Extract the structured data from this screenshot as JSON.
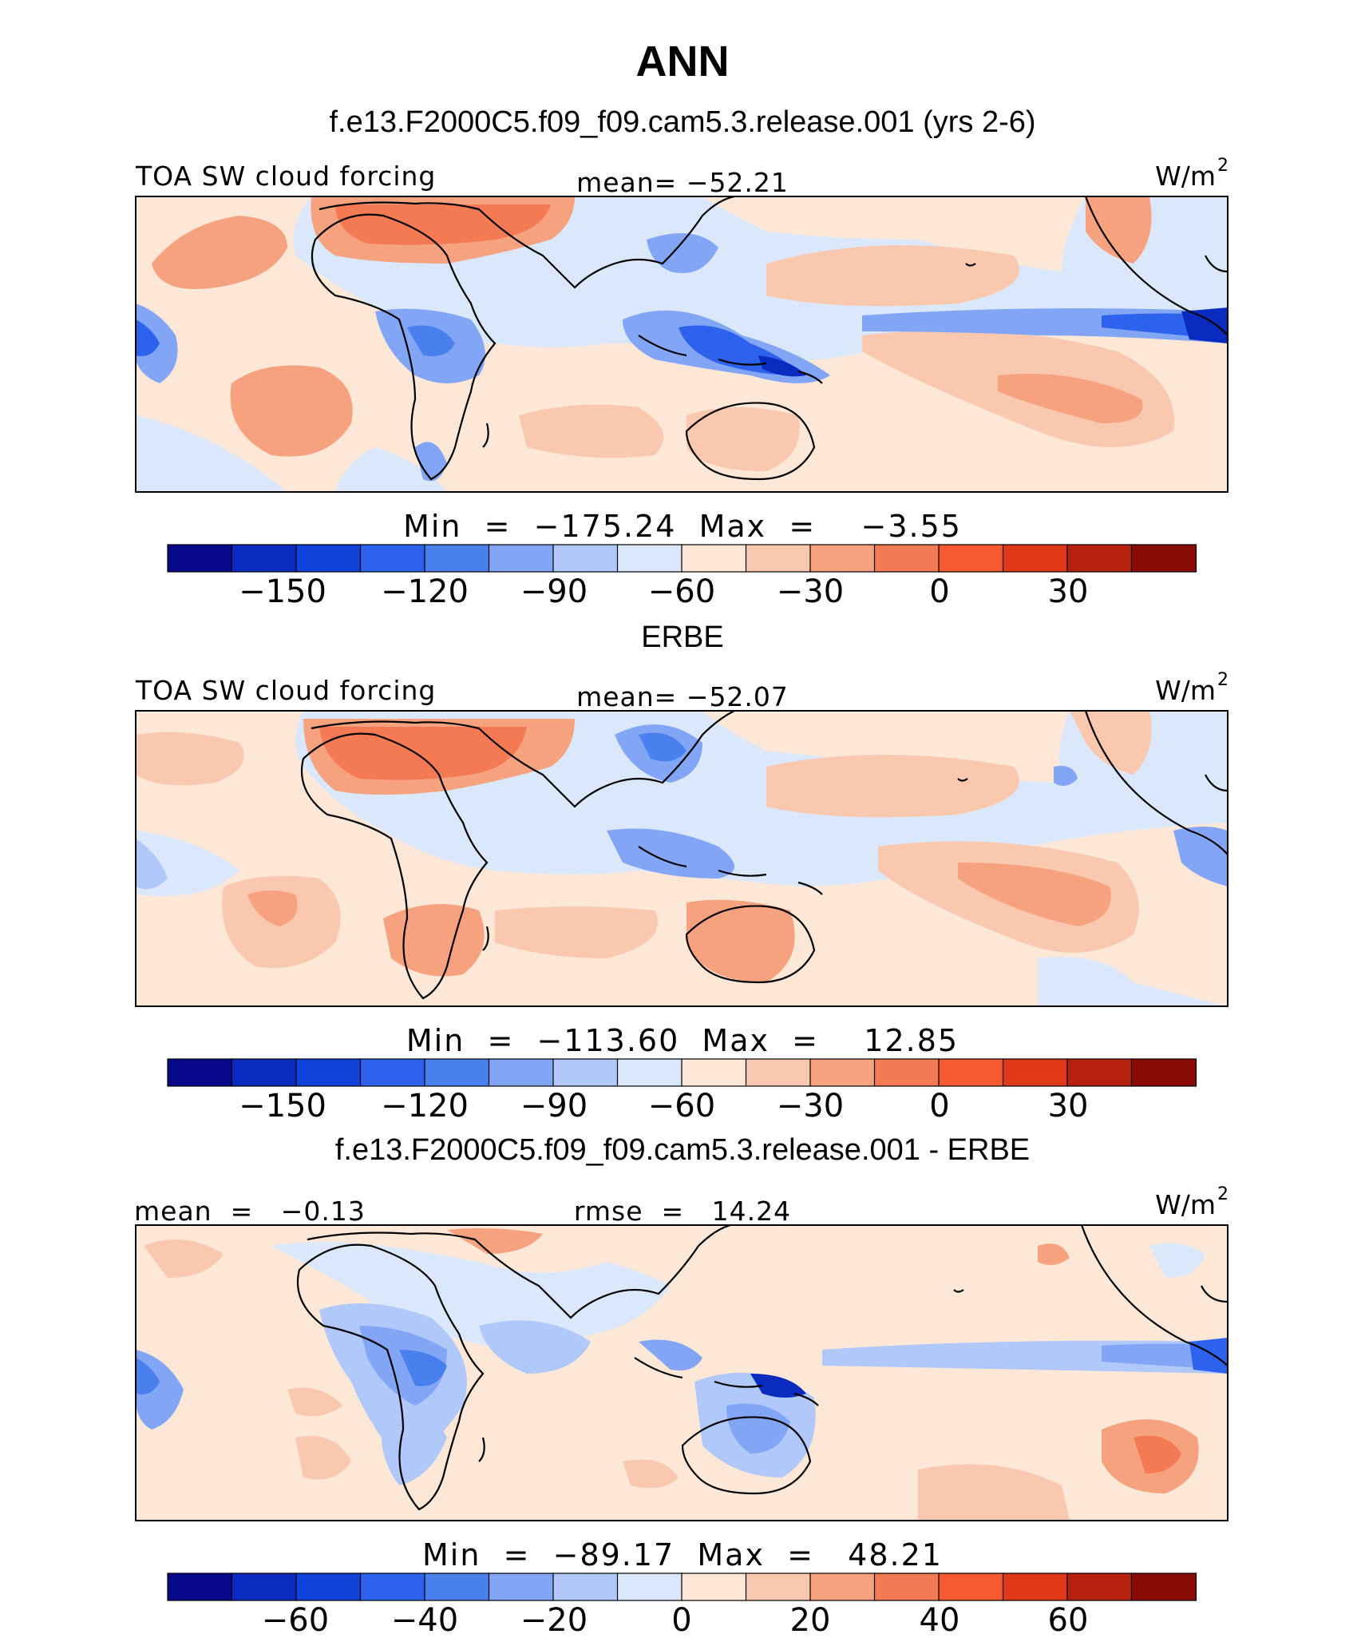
{
  "figure": {
    "season": "ANN",
    "colors": {
      "levels": [
        "#08088a",
        "#0a2bbf",
        "#1242dc",
        "#2c62ec",
        "#4a7fee",
        "#82a6f5",
        "#b0c8fa",
        "#dbe8fc",
        "#fde8d8",
        "#fac7af",
        "#f6a27e",
        "#f47a53",
        "#f55a30",
        "#e0391a",
        "#b8200e",
        "#8a0a05"
      ],
      "coast": "#000000",
      "frame": "#000000"
    },
    "panels": [
      {
        "heading": "f.e13.F2000C5.f09_f09.cam5.3.release.001 (yrs 2-6)",
        "left_label": "TOA SW cloud forcing",
        "center_label": "mean= −52.21",
        "units": "W/m",
        "units_sup": "2",
        "minmax": "Min  =  −175.24  Max  =    −3.55",
        "colorbar_ticks": [
          "−150",
          "−120",
          "−90",
          "−60",
          "−30",
          "0",
          "30"
        ]
      },
      {
        "heading": "ERBE",
        "left_label": "TOA SW cloud forcing",
        "center_label": "mean= −52.07",
        "units": "W/m",
        "units_sup": "2",
        "minmax": "Min  =  −113.60  Max  =    12.85",
        "colorbar_ticks": [
          "−150",
          "−120",
          "−90",
          "−60",
          "−30",
          "0",
          "30"
        ]
      },
      {
        "heading": "f.e13.F2000C5.f09_f09.cam5.3.release.001 - ERBE",
        "left_label": "mean  =   −0.13",
        "center_label": "rmse  =   14.24",
        "units": "W/m",
        "units_sup": "2",
        "minmax": "Min  =  −89.17  Max  =   48.21",
        "colorbar_ticks": [
          "−60",
          "−40",
          "−20",
          "0",
          "20",
          "40",
          "60"
        ]
      }
    ]
  }
}
